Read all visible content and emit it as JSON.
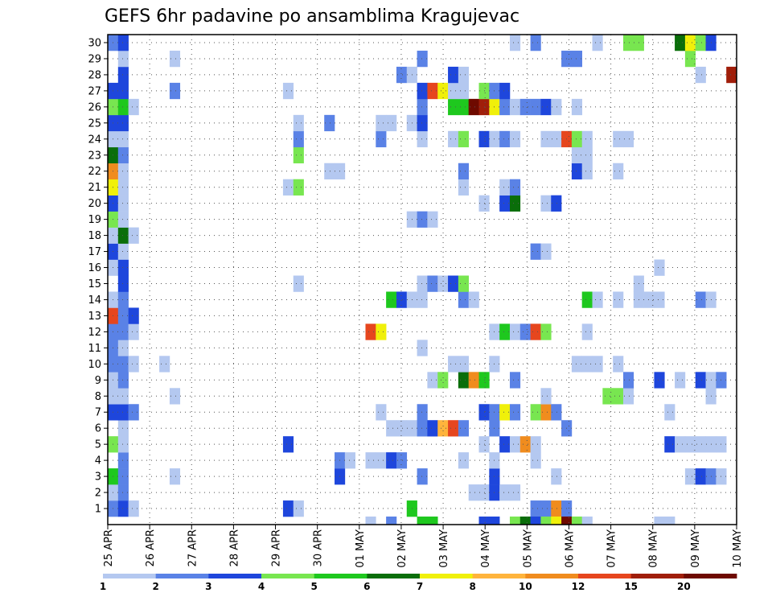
{
  "chart_data": {
    "type": "heatmap",
    "title": "GEFS 6hr padavine po ansamblima Kragujevac",
    "xlabel": "",
    "ylabel": "",
    "x_ticks": [
      "25 APR",
      "26 APR",
      "27 APR",
      "28 APR",
      "29 APR",
      "30 APR",
      "01 MAY",
      "02 MAY",
      "03 MAY",
      "04 MAY",
      "05 MAY",
      "06 MAY",
      "07 MAY",
      "08 MAY",
      "09 MAY",
      "10 MAY"
    ],
    "y_ticks": [
      "1",
      "2",
      "3",
      "4",
      "5",
      "6",
      "7",
      "8",
      "9",
      "10",
      "11",
      "12",
      "13",
      "14",
      "15",
      "16",
      "17",
      "18",
      "19",
      "20",
      "21",
      "22",
      "23",
      "24",
      "25",
      "26",
      "27",
      "28",
      "29",
      "30"
    ],
    "time_steps": 61,
    "members": 30,
    "grid": true,
    "colorbar": {
      "levels": [
        "1",
        "2",
        "3",
        "4",
        "5",
        "6",
        "7",
        "8",
        "10",
        "12",
        "15",
        "20"
      ],
      "colors": [
        "#b4c8f0",
        "#5a82e6",
        "#1e46dc",
        "#78e650",
        "#1ec81e",
        "#0a6e0a",
        "#f0f00a",
        "#ffb43c",
        "#f08c1e",
        "#e6461e",
        "#a01e0a",
        "#6e0a00"
      ]
    },
    "cells": [
      [
        1,
        1,
        1
      ],
      [
        1,
        2,
        2
      ],
      [
        1,
        3,
        0
      ],
      [
        1,
        18,
        2
      ],
      [
        1,
        19,
        0
      ],
      [
        1,
        30,
        4
      ],
      [
        1,
        42,
        1
      ],
      [
        1,
        43,
        1
      ],
      [
        1,
        44,
        8
      ],
      [
        1,
        45,
        1
      ],
      [
        2,
        1,
        0
      ],
      [
        2,
        2,
        1
      ],
      [
        2,
        36,
        0
      ],
      [
        2,
        37,
        0
      ],
      [
        2,
        38,
        2
      ],
      [
        2,
        39,
        0
      ],
      [
        2,
        40,
        0
      ],
      [
        3,
        1,
        4
      ],
      [
        3,
        2,
        1
      ],
      [
        3,
        7,
        0
      ],
      [
        3,
        23,
        2
      ],
      [
        3,
        31,
        1
      ],
      [
        3,
        38,
        2
      ],
      [
        3,
        44,
        0
      ],
      [
        3,
        57,
        0
      ],
      [
        3,
        58,
        2
      ],
      [
        3,
        59,
        1
      ],
      [
        3,
        60,
        0
      ],
      [
        4,
        2,
        1
      ],
      [
        4,
        23,
        1
      ],
      [
        4,
        24,
        0
      ],
      [
        4,
        26,
        0
      ],
      [
        4,
        27,
        0
      ],
      [
        4,
        28,
        2
      ],
      [
        4,
        29,
        1
      ],
      [
        4,
        35,
        0
      ],
      [
        4,
        38,
        0
      ],
      [
        4,
        42,
        0
      ],
      [
        5,
        1,
        3
      ],
      [
        5,
        2,
        0
      ],
      [
        5,
        18,
        2
      ],
      [
        5,
        37,
        0
      ],
      [
        5,
        39,
        2
      ],
      [
        5,
        40,
        0
      ],
      [
        5,
        41,
        8
      ],
      [
        5,
        42,
        0
      ],
      [
        5,
        55,
        2
      ],
      [
        5,
        56,
        0
      ],
      [
        5,
        57,
        0
      ],
      [
        5,
        58,
        0
      ],
      [
        5,
        59,
        0
      ],
      [
        5,
        60,
        0
      ],
      [
        6,
        2,
        0
      ],
      [
        6,
        28,
        0
      ],
      [
        6,
        29,
        0
      ],
      [
        6,
        30,
        0
      ],
      [
        6,
        31,
        1
      ],
      [
        6,
        32,
        2
      ],
      [
        6,
        33,
        7
      ],
      [
        6,
        34,
        9
      ],
      [
        6,
        35,
        1
      ],
      [
        6,
        38,
        1
      ],
      [
        6,
        45,
        1
      ],
      [
        7,
        1,
        2
      ],
      [
        7,
        2,
        2
      ],
      [
        7,
        3,
        1
      ],
      [
        7,
        27,
        0
      ],
      [
        7,
        31,
        1
      ],
      [
        7,
        37,
        2
      ],
      [
        7,
        38,
        1
      ],
      [
        7,
        39,
        6
      ],
      [
        7,
        40,
        1
      ],
      [
        7,
        42,
        3
      ],
      [
        7,
        43,
        8
      ],
      [
        7,
        44,
        1
      ],
      [
        7,
        55,
        0
      ],
      [
        8,
        1,
        0
      ],
      [
        8,
        2,
        0
      ],
      [
        8,
        7,
        0
      ],
      [
        8,
        43,
        0
      ],
      [
        8,
        49,
        3
      ],
      [
        8,
        50,
        3
      ],
      [
        8,
        51,
        0
      ],
      [
        8,
        59,
        0
      ],
      [
        9,
        1,
        0
      ],
      [
        9,
        2,
        1
      ],
      [
        9,
        32,
        0
      ],
      [
        9,
        33,
        3
      ],
      [
        9,
        35,
        5
      ],
      [
        9,
        36,
        8
      ],
      [
        9,
        37,
        4
      ],
      [
        9,
        40,
        1
      ],
      [
        9,
        51,
        1
      ],
      [
        9,
        54,
        2
      ],
      [
        9,
        56,
        0
      ],
      [
        9,
        58,
        2
      ],
      [
        9,
        59,
        0
      ],
      [
        9,
        60,
        1
      ],
      [
        10,
        1,
        1
      ],
      [
        10,
        2,
        1
      ],
      [
        10,
        3,
        0
      ],
      [
        10,
        6,
        0
      ],
      [
        10,
        34,
        0
      ],
      [
        10,
        35,
        0
      ],
      [
        10,
        38,
        0
      ],
      [
        10,
        46,
        0
      ],
      [
        10,
        47,
        0
      ],
      [
        10,
        48,
        0
      ],
      [
        10,
        50,
        0
      ],
      [
        11,
        1,
        1
      ],
      [
        11,
        2,
        0
      ],
      [
        11,
        31,
        0
      ],
      [
        12,
        1,
        1
      ],
      [
        12,
        2,
        1
      ],
      [
        12,
        3,
        0
      ],
      [
        12,
        26,
        9
      ],
      [
        12,
        27,
        6
      ],
      [
        12,
        38,
        0
      ],
      [
        12,
        39,
        4
      ],
      [
        12,
        40,
        0
      ],
      [
        12,
        41,
        1
      ],
      [
        12,
        42,
        9
      ],
      [
        12,
        43,
        3
      ],
      [
        12,
        47,
        0
      ],
      [
        13,
        1,
        9
      ],
      [
        13,
        2,
        1
      ],
      [
        13,
        3,
        2
      ],
      [
        14,
        1,
        0
      ],
      [
        14,
        2,
        1
      ],
      [
        14,
        28,
        4
      ],
      [
        14,
        29,
        2
      ],
      [
        14,
        30,
        0
      ],
      [
        14,
        31,
        0
      ],
      [
        14,
        35,
        1
      ],
      [
        14,
        36,
        0
      ],
      [
        14,
        47,
        4
      ],
      [
        14,
        48,
        0
      ],
      [
        14,
        50,
        0
      ],
      [
        14,
        52,
        0
      ],
      [
        14,
        53,
        0
      ],
      [
        14,
        54,
        0
      ],
      [
        14,
        58,
        1
      ],
      [
        14,
        59,
        0
      ],
      [
        15,
        2,
        2
      ],
      [
        15,
        19,
        0
      ],
      [
        15,
        31,
        0
      ],
      [
        15,
        32,
        1
      ],
      [
        15,
        33,
        0
      ],
      [
        15,
        34,
        2
      ],
      [
        15,
        35,
        3
      ],
      [
        15,
        52,
        0
      ],
      [
        16,
        1,
        0
      ],
      [
        16,
        2,
        2
      ],
      [
        16,
        54,
        0
      ],
      [
        17,
        1,
        2
      ],
      [
        17,
        2,
        0
      ],
      [
        17,
        42,
        1
      ],
      [
        17,
        43,
        0
      ],
      [
        18,
        1,
        0
      ],
      [
        18,
        2,
        5
      ],
      [
        18,
        3,
        0
      ],
      [
        19,
        1,
        3
      ],
      [
        19,
        2,
        0
      ],
      [
        19,
        30,
        0
      ],
      [
        19,
        31,
        1
      ],
      [
        19,
        32,
        0
      ],
      [
        20,
        1,
        2
      ],
      [
        20,
        2,
        0
      ],
      [
        20,
        37,
        0
      ],
      [
        20,
        39,
        2
      ],
      [
        20,
        40,
        5
      ],
      [
        20,
        43,
        0
      ],
      [
        20,
        44,
        2
      ],
      [
        21,
        1,
        6
      ],
      [
        21,
        2,
        0
      ],
      [
        21,
        18,
        0
      ],
      [
        21,
        19,
        3
      ],
      [
        21,
        35,
        0
      ],
      [
        21,
        39,
        0
      ],
      [
        21,
        40,
        1
      ],
      [
        22,
        1,
        8
      ],
      [
        22,
        2,
        0
      ],
      [
        22,
        22,
        0
      ],
      [
        22,
        23,
        0
      ],
      [
        22,
        35,
        1
      ],
      [
        22,
        46,
        2
      ],
      [
        22,
        47,
        0
      ],
      [
        22,
        50,
        0
      ],
      [
        23,
        1,
        5
      ],
      [
        23,
        2,
        1
      ],
      [
        23,
        19,
        3
      ],
      [
        23,
        46,
        0
      ],
      [
        23,
        47,
        0
      ],
      [
        24,
        1,
        0
      ],
      [
        24,
        2,
        0
      ],
      [
        24,
        19,
        1
      ],
      [
        24,
        27,
        1
      ],
      [
        24,
        31,
        0
      ],
      [
        24,
        34,
        0
      ],
      [
        24,
        35,
        3
      ],
      [
        24,
        37,
        2
      ],
      [
        24,
        38,
        0
      ],
      [
        24,
        39,
        1
      ],
      [
        24,
        40,
        0
      ],
      [
        24,
        43,
        0
      ],
      [
        24,
        44,
        0
      ],
      [
        24,
        45,
        9
      ],
      [
        24,
        46,
        3
      ],
      [
        24,
        47,
        0
      ],
      [
        24,
        50,
        0
      ],
      [
        24,
        51,
        0
      ],
      [
        25,
        1,
        2
      ],
      [
        25,
        2,
        2
      ],
      [
        25,
        19,
        0
      ],
      [
        25,
        22,
        1
      ],
      [
        25,
        27,
        0
      ],
      [
        25,
        28,
        0
      ],
      [
        25,
        30,
        0
      ],
      [
        25,
        31,
        2
      ],
      [
        26,
        1,
        3
      ],
      [
        26,
        2,
        4
      ],
      [
        26,
        3,
        0
      ],
      [
        26,
        31,
        1
      ],
      [
        26,
        34,
        4
      ],
      [
        26,
        35,
        4
      ],
      [
        26,
        36,
        11
      ],
      [
        26,
        37,
        10
      ],
      [
        26,
        38,
        6
      ],
      [
        26,
        39,
        1
      ],
      [
        26,
        40,
        0
      ],
      [
        26,
        41,
        1
      ],
      [
        26,
        42,
        1
      ],
      [
        26,
        43,
        2
      ],
      [
        26,
        44,
        0
      ],
      [
        26,
        46,
        0
      ],
      [
        27,
        1,
        2
      ],
      [
        27,
        2,
        2
      ],
      [
        27,
        7,
        1
      ],
      [
        27,
        18,
        0
      ],
      [
        27,
        31,
        2
      ],
      [
        27,
        32,
        9
      ],
      [
        27,
        33,
        6
      ],
      [
        27,
        34,
        0
      ],
      [
        27,
        35,
        0
      ],
      [
        27,
        37,
        3
      ],
      [
        27,
        38,
        1
      ],
      [
        27,
        39,
        2
      ],
      [
        28,
        2,
        2
      ],
      [
        28,
        29,
        1
      ],
      [
        28,
        30,
        0
      ],
      [
        28,
        34,
        2
      ],
      [
        28,
        35,
        0
      ],
      [
        28,
        58,
        0
      ],
      [
        28,
        61,
        10
      ],
      [
        29,
        2,
        0
      ],
      [
        29,
        7,
        0
      ],
      [
        29,
        31,
        1
      ],
      [
        29,
        45,
        1
      ],
      [
        29,
        46,
        1
      ],
      [
        29,
        57,
        3
      ],
      [
        30,
        1,
        1
      ],
      [
        30,
        2,
        2
      ],
      [
        30,
        40,
        0
      ],
      [
        30,
        42,
        1
      ],
      [
        30,
        48,
        0
      ],
      [
        30,
        51,
        3
      ],
      [
        30,
        52,
        3
      ],
      [
        30,
        56,
        5
      ],
      [
        30,
        57,
        6
      ],
      [
        30,
        58,
        3
      ],
      [
        30,
        59,
        2
      ]
    ],
    "bottom_row": [
      [
        26,
        0
      ],
      [
        28,
        1
      ],
      [
        31,
        4
      ],
      [
        32,
        4
      ],
      [
        37,
        2
      ],
      [
        38,
        2
      ],
      [
        40,
        3
      ],
      [
        41,
        5
      ],
      [
        42,
        2
      ],
      [
        43,
        3
      ],
      [
        44,
        6
      ],
      [
        45,
        11
      ],
      [
        46,
        3
      ],
      [
        47,
        0
      ],
      [
        54,
        0
      ],
      [
        55,
        0
      ]
    ]
  }
}
